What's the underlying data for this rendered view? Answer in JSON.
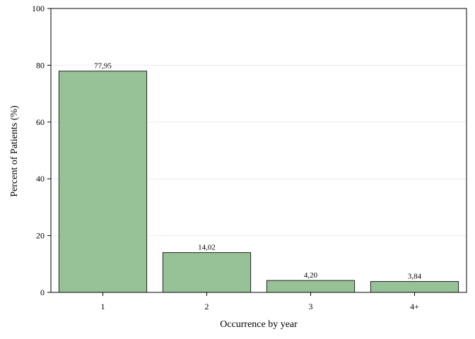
{
  "chart_data": {
    "type": "bar",
    "categories": [
      "1",
      "2",
      "3",
      "4+"
    ],
    "values": [
      77.95,
      14.02,
      4.2,
      3.84
    ],
    "data_labels": [
      "77,95",
      "14,02",
      "4,20",
      "3,84"
    ],
    "title": "",
    "xlabel": "Occurrence by year",
    "ylabel": "Percent of Patients (%)",
    "ylim": [
      0,
      100
    ],
    "yticks": [
      0,
      20,
      40,
      60,
      80,
      100
    ],
    "ytick_labels": [
      "0",
      "20",
      "40",
      "60",
      "80",
      "100"
    ],
    "grid": true,
    "legend": "none",
    "bar_color": "#97c197",
    "bar_edge_color": "#222222",
    "grid_color": "#ececec"
  }
}
